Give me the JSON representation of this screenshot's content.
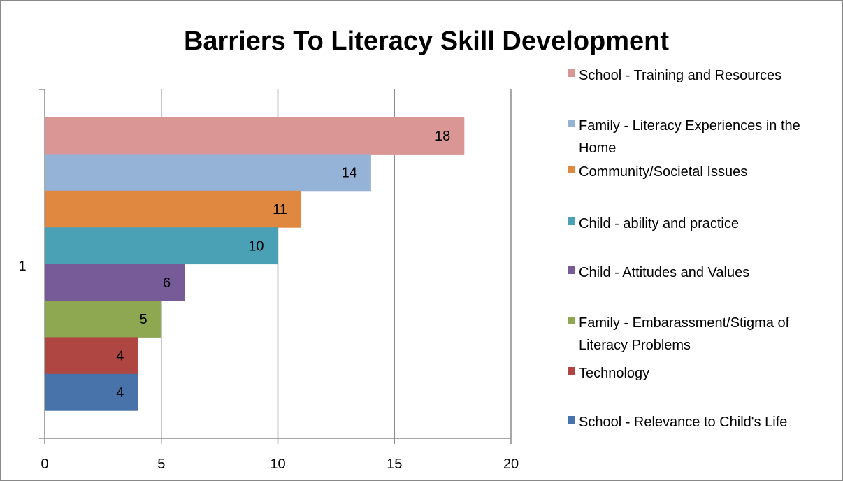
{
  "chart_data": {
    "type": "bar",
    "orientation": "horizontal",
    "title": "Barriers To Literacy Skill Development",
    "categories": [
      "1"
    ],
    "xlim": [
      0,
      20
    ],
    "x_ticks": [
      "0",
      "5",
      "10",
      "15",
      "20"
    ],
    "grid": "vertical",
    "legend_position": "right",
    "series": [
      {
        "name": "School - Training and Resources",
        "values": [
          18
        ],
        "color": "#d99694"
      },
      {
        "name": "Family - Literacy Experiences in the Home",
        "values": [
          14
        ],
        "color": "#95b3d7"
      },
      {
        "name": "Community/Societal Issues",
        "values": [
          11
        ],
        "color": "#e0883f"
      },
      {
        "name": "Child - ability and practice",
        "values": [
          10
        ],
        "color": "#4aa0b4"
      },
      {
        "name": "Child - Attitudes and Values",
        "values": [
          6
        ],
        "color": "#775a98"
      },
      {
        "name": "Family - Embarassment/Stigma of Literacy Problems",
        "values": [
          5
        ],
        "color": "#8ea851"
      },
      {
        "name": "Technology",
        "values": [
          4
        ],
        "color": "#b04642"
      },
      {
        "name": "School - Relevance to Child's Life",
        "values": [
          4
        ],
        "color": "#4773aa"
      }
    ]
  }
}
